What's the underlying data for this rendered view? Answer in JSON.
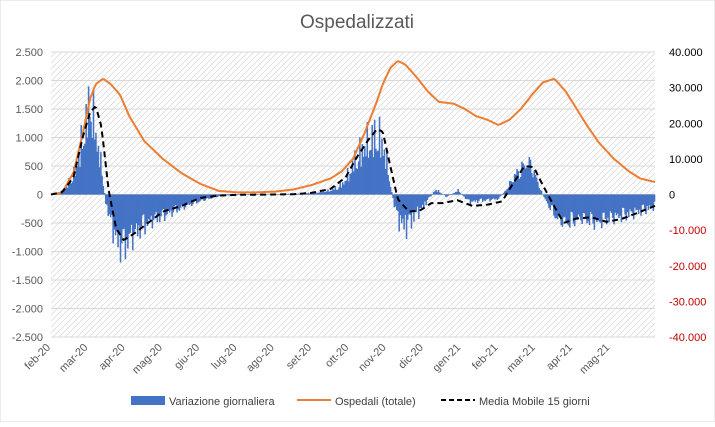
{
  "chart_data": {
    "type": "bar",
    "title": "Ospedalizzati",
    "xlabel": "",
    "ylabel": "",
    "x_tick_labels": [
      "feb-20",
      "mar-20",
      "apr-20",
      "mag-20",
      "giu-20",
      "lug-20",
      "ago-20",
      "set-20",
      "ott-20",
      "nov-20",
      "dic-20",
      "gen-21",
      "feb-21",
      "mar-21",
      "apr-21",
      "mag-21"
    ],
    "x_range_months": [
      0,
      16.2
    ],
    "y_left": {
      "ticks": [
        "2.500",
        "2.000",
        "1.500",
        "1.000",
        "500",
        "0",
        "-500",
        "-1.000",
        "-1.500",
        "-2.000",
        "-2.500"
      ],
      "tick_values": [
        2500,
        2000,
        1500,
        1000,
        500,
        0,
        -500,
        -1000,
        -1500,
        -2000,
        -2500
      ],
      "range": [
        -2500,
        2500
      ]
    },
    "y_right": {
      "ticks": [
        "40.000",
        "30.000",
        "20.000",
        "10.000",
        "0",
        "-10.000",
        "-20.000",
        "-30.000",
        "-40.000"
      ],
      "tick_values": [
        40000,
        30000,
        20000,
        10000,
        0,
        -10000,
        -20000,
        -30000,
        -40000
      ],
      "range": [
        -40000,
        40000
      ],
      "positive_color": "#000000",
      "negative_color": "#c00000"
    },
    "grid": "diagonal hatch",
    "legend_position": "bottom",
    "series": [
      {
        "name": "Variazione giornaliera",
        "kind": "bar",
        "axis": "left",
        "color": "#4472c4",
        "anchors": [
          [
            0,
            0
          ],
          [
            0.3,
            60
          ],
          [
            0.6,
            400
          ],
          [
            0.8,
            1000
          ],
          [
            0.95,
            1500
          ],
          [
            1.05,
            1900
          ],
          [
            1.15,
            1300
          ],
          [
            1.3,
            700
          ],
          [
            1.45,
            -150
          ],
          [
            1.6,
            -600
          ],
          [
            1.75,
            -900
          ],
          [
            1.9,
            -1050
          ],
          [
            2.1,
            -850
          ],
          [
            2.4,
            -650
          ],
          [
            2.7,
            -500
          ],
          [
            3.1,
            -380
          ],
          [
            3.5,
            -250
          ],
          [
            4.0,
            -120
          ],
          [
            4.5,
            -30
          ],
          [
            5.0,
            -10
          ],
          [
            5.5,
            -5
          ],
          [
            6.0,
            5
          ],
          [
            6.5,
            15
          ],
          [
            7.0,
            30
          ],
          [
            7.5,
            80
          ],
          [
            7.8,
            200
          ],
          [
            8.0,
            450
          ],
          [
            8.2,
            750
          ],
          [
            8.45,
            1000
          ],
          [
            8.7,
            1150
          ],
          [
            8.85,
            1050
          ],
          [
            9.0,
            600
          ],
          [
            9.15,
            -100
          ],
          [
            9.3,
            -500
          ],
          [
            9.5,
            -650
          ],
          [
            9.7,
            -450
          ],
          [
            9.9,
            -300
          ],
          [
            10.1,
            -100
          ],
          [
            10.3,
            100
          ],
          [
            10.6,
            -50
          ],
          [
            10.9,
            80
          ],
          [
            11.2,
            -150
          ],
          [
            11.5,
            -120
          ],
          [
            11.8,
            -100
          ],
          [
            12.0,
            -80
          ],
          [
            12.2,
            100
          ],
          [
            12.4,
            350
          ],
          [
            12.65,
            550
          ],
          [
            12.85,
            600
          ],
          [
            13.0,
            300
          ],
          [
            13.2,
            -50
          ],
          [
            13.4,
            -300
          ],
          [
            13.6,
            -500
          ],
          [
            13.9,
            -550
          ],
          [
            14.2,
            -450
          ],
          [
            14.6,
            -550
          ],
          [
            15.0,
            -450
          ],
          [
            15.4,
            -400
          ],
          [
            15.8,
            -320
          ],
          [
            16.1,
            -250
          ],
          [
            16.2,
            -200
          ]
        ]
      },
      {
        "name": "Ospedali (totale)",
        "kind": "line",
        "axis": "right",
        "color": "#ed7d31",
        "anchors": [
          [
            0,
            0
          ],
          [
            0.3,
            600
          ],
          [
            0.6,
            6000
          ],
          [
            0.85,
            17000
          ],
          [
            1.05,
            27000
          ],
          [
            1.2,
            31000
          ],
          [
            1.4,
            32500
          ],
          [
            1.6,
            31000
          ],
          [
            1.85,
            28000
          ],
          [
            2.1,
            22000
          ],
          [
            2.5,
            15000
          ],
          [
            3.0,
            10000
          ],
          [
            3.5,
            6000
          ],
          [
            4.0,
            3000
          ],
          [
            4.5,
            1000
          ],
          [
            5.0,
            600
          ],
          [
            5.5,
            600
          ],
          [
            6.0,
            800
          ],
          [
            6.5,
            1400
          ],
          [
            7.0,
            2700
          ],
          [
            7.5,
            4500
          ],
          [
            7.8,
            6500
          ],
          [
            8.1,
            10000
          ],
          [
            8.4,
            17000
          ],
          [
            8.7,
            25000
          ],
          [
            8.9,
            31000
          ],
          [
            9.1,
            35500
          ],
          [
            9.3,
            37500
          ],
          [
            9.5,
            36500
          ],
          [
            9.8,
            33000
          ],
          [
            10.1,
            29000
          ],
          [
            10.4,
            26000
          ],
          [
            10.8,
            25500
          ],
          [
            11.1,
            24000
          ],
          [
            11.4,
            22000
          ],
          [
            11.7,
            21000
          ],
          [
            12.0,
            19500
          ],
          [
            12.3,
            21000
          ],
          [
            12.6,
            24000
          ],
          [
            12.9,
            28000
          ],
          [
            13.2,
            31500
          ],
          [
            13.5,
            32500
          ],
          [
            13.8,
            29000
          ],
          [
            14.1,
            24000
          ],
          [
            14.4,
            19000
          ],
          [
            14.7,
            14500
          ],
          [
            15.1,
            10000
          ],
          [
            15.5,
            6500
          ],
          [
            15.8,
            4500
          ],
          [
            16.2,
            3500
          ]
        ]
      },
      {
        "name": "Media Mobile 15 giorni",
        "kind": "line",
        "axis": "left",
        "style": "dashed",
        "color": "#000000",
        "anchors": [
          [
            0,
            0
          ],
          [
            0.3,
            40
          ],
          [
            0.6,
            300
          ],
          [
            0.85,
            1000
          ],
          [
            1.05,
            1450
          ],
          [
            1.2,
            1550
          ],
          [
            1.35,
            1200
          ],
          [
            1.55,
            50
          ],
          [
            1.75,
            -600
          ],
          [
            1.95,
            -800
          ],
          [
            2.2,
            -700
          ],
          [
            2.6,
            -500
          ],
          [
            3.0,
            -300
          ],
          [
            3.5,
            -200
          ],
          [
            4.0,
            -60
          ],
          [
            4.5,
            -20
          ],
          [
            5.0,
            -5
          ],
          [
            6.0,
            0
          ],
          [
            6.5,
            5
          ],
          [
            7.0,
            30
          ],
          [
            7.5,
            100
          ],
          [
            7.9,
            300
          ],
          [
            8.2,
            650
          ],
          [
            8.5,
            950
          ],
          [
            8.75,
            1150
          ],
          [
            8.9,
            1100
          ],
          [
            9.1,
            500
          ],
          [
            9.3,
            -80
          ],
          [
            9.6,
            -300
          ],
          [
            9.9,
            -280
          ],
          [
            10.2,
            -150
          ],
          [
            10.5,
            -150
          ],
          [
            10.9,
            -100
          ],
          [
            11.3,
            -200
          ],
          [
            11.7,
            -180
          ],
          [
            12.1,
            -120
          ],
          [
            12.4,
            200
          ],
          [
            12.7,
            500
          ],
          [
            12.95,
            480
          ],
          [
            13.2,
            150
          ],
          [
            13.45,
            -150
          ],
          [
            13.75,
            -500
          ],
          [
            14.1,
            -420
          ],
          [
            14.5,
            -400
          ],
          [
            14.9,
            -480
          ],
          [
            15.3,
            -430
          ],
          [
            15.7,
            -330
          ],
          [
            16.2,
            -200
          ]
        ]
      }
    ]
  }
}
